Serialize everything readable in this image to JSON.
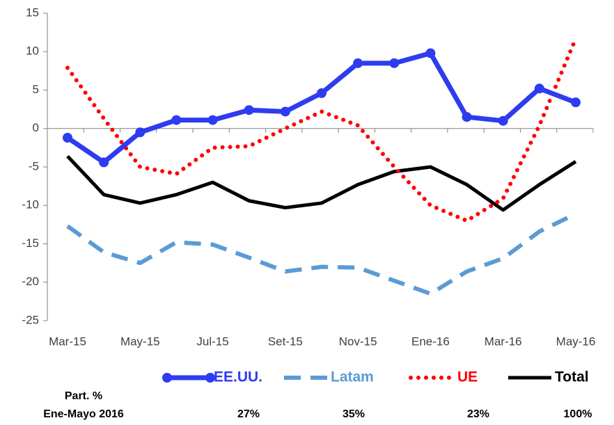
{
  "chart_data": {
    "type": "line",
    "categories": [
      "Mar-15",
      null,
      "May-15",
      null,
      "Jul-15",
      null,
      "Set-15",
      null,
      "Nov-15",
      null,
      "Ene-16",
      null,
      "Mar-16",
      null,
      "May-16"
    ],
    "series": [
      {
        "name": "EE.UU.",
        "color": "#2e3cf0",
        "dash": "solid",
        "marker": true,
        "values": [
          -1.2,
          -4.4,
          -0.5,
          1.1,
          1.1,
          2.4,
          2.2,
          4.6,
          8.5,
          8.5,
          9.8,
          1.5,
          1.0,
          5.2,
          3.4
        ]
      },
      {
        "name": "Latam",
        "color": "#5b9bd5",
        "dash": "dashed",
        "marker": false,
        "values": [
          -12.7,
          -16.1,
          -17.5,
          -14.8,
          -15.1,
          -16.8,
          -18.6,
          -18.0,
          -18.1,
          -19.8,
          -21.5,
          -18.6,
          -16.9,
          -13.4,
          -11.1
        ]
      },
      {
        "name": "UE",
        "color": "#ff0000",
        "dash": "dotted",
        "marker": false,
        "values": [
          7.9,
          1.3,
          -5.0,
          -5.9,
          -2.5,
          -2.3,
          0,
          2.2,
          0.4,
          -5.0,
          -10.0,
          -12.0,
          -9.1,
          0.4,
          11.7
        ]
      },
      {
        "name": "Total",
        "color": "#000000",
        "dash": "solid",
        "marker": false,
        "values": [
          -3.6,
          -8.6,
          -9.7,
          -8.6,
          -7.0,
          -9.4,
          -10.3,
          -9.7,
          -7.3,
          -5.6,
          -5.0,
          -7.3,
          -10.6,
          -7.3,
          -4.3
        ]
      }
    ],
    "ylim": [
      -25,
      15
    ],
    "yticks": [
      -25,
      -20,
      -15,
      -10,
      -5,
      0,
      5,
      10,
      15
    ],
    "footer": {
      "title": [
        "Part. %",
        "Ene-Mayo 2016"
      ],
      "shares": [
        "27%",
        "35%",
        "23%",
        "100%"
      ]
    }
  }
}
